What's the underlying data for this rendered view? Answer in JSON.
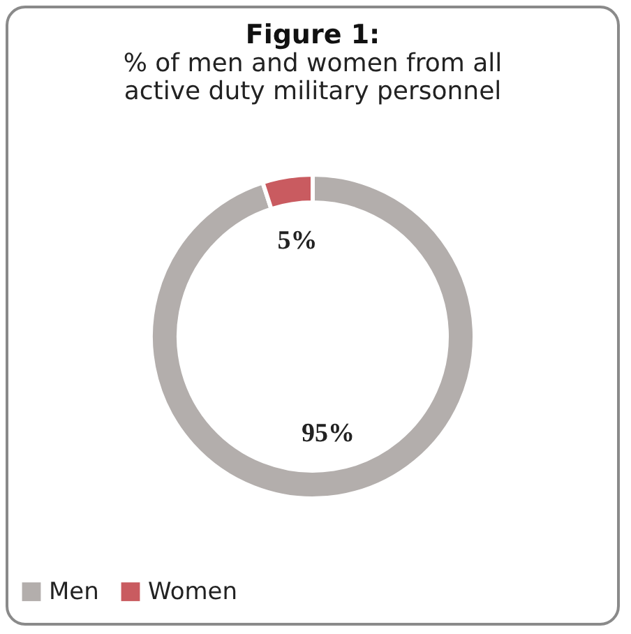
{
  "chart_data": {
    "type": "donut",
    "title": "Figure 1:",
    "subtitle": "% of men and women from all active duty military personnel",
    "categories": [
      "Men",
      "Women"
    ],
    "values": [
      95,
      5
    ],
    "colors": [
      "#b3aeac",
      "#c95b60"
    ],
    "value_labels": [
      "95%",
      "5%"
    ],
    "legend": "bottom"
  }
}
